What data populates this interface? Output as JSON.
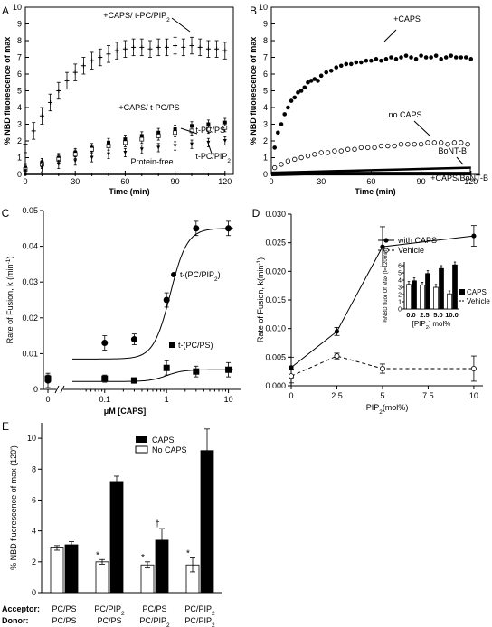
{
  "chart_data": [
    {
      "panel": "A",
      "type": "line",
      "ylabel": "% NBD fluorescence of max",
      "xlabel": "Time (min)",
      "xlim": [
        0,
        125
      ],
      "ylim": [
        0,
        10
      ],
      "xticks": [
        0,
        30,
        60,
        90,
        120
      ],
      "yticks": [
        0,
        1,
        2,
        3,
        4,
        5,
        6,
        7,
        8,
        9,
        10
      ],
      "annotations": [
        "+CAPS/ t-PC/PIP2",
        "+CAPS/ t-PC/PS",
        "t-PC/PS",
        "t-PC/PIP2",
        "Protein-free"
      ],
      "series": [
        {
          "name": "+CAPS/ t-PC/PIP2",
          "x": [
            0,
            5,
            10,
            15,
            20,
            25,
            30,
            35,
            40,
            45,
            50,
            55,
            60,
            65,
            70,
            75,
            80,
            85,
            90,
            95,
            100,
            105,
            110,
            115,
            120
          ],
          "y": [
            1.8,
            2.6,
            3.5,
            4.3,
            5.0,
            5.6,
            6.1,
            6.5,
            6.8,
            7.0,
            7.2,
            7.4,
            7.5,
            7.6,
            7.6,
            7.5,
            7.6,
            7.6,
            7.7,
            7.6,
            7.7,
            7.6,
            7.5,
            7.5,
            7.4
          ]
        },
        {
          "name": "+CAPS/ t-PC/PS",
          "x": [
            0,
            10,
            20,
            30,
            40,
            50,
            60,
            70,
            80,
            90,
            100,
            110,
            120
          ],
          "y": [
            0.4,
            0.7,
            1.0,
            1.3,
            1.6,
            1.9,
            2.1,
            2.3,
            2.5,
            2.7,
            2.9,
            3.0,
            3.1
          ]
        },
        {
          "name": "t-PC/PS",
          "x": [
            0,
            10,
            20,
            30,
            40,
            50,
            60,
            70,
            80,
            90,
            100,
            110,
            120
          ],
          "y": [
            0.3,
            0.6,
            0.9,
            1.2,
            1.5,
            1.7,
            1.9,
            2.1,
            2.3,
            2.5,
            2.6,
            2.7,
            2.8
          ]
        },
        {
          "name": "t-PC/PIP2",
          "x": [
            0,
            10,
            20,
            30,
            40,
            50,
            60,
            70,
            80,
            90,
            100,
            110,
            120
          ],
          "y": [
            0.2,
            0.4,
            0.6,
            0.8,
            1.0,
            1.2,
            1.3,
            1.5,
            1.6,
            1.7,
            1.8,
            1.9,
            2.0
          ]
        },
        {
          "name": "Protein-free",
          "x": [
            0,
            10,
            20,
            30,
            40,
            50,
            60,
            70,
            80,
            90,
            100,
            110,
            120
          ],
          "y": [
            0,
            0,
            0,
            0,
            0,
            0,
            0,
            0,
            0,
            0,
            0,
            0,
            0
          ]
        }
      ]
    },
    {
      "panel": "B",
      "type": "scatter",
      "ylabel": "% NBD fluorescence of max",
      "xlabel": "Time (min)",
      "xlim": [
        0,
        125
      ],
      "ylim": [
        0,
        10
      ],
      "xticks": [
        0,
        30,
        60,
        90,
        120
      ],
      "yticks": [
        0,
        1,
        2,
        3,
        4,
        5,
        6,
        7,
        8,
        9,
        10
      ],
      "annotations": [
        "+CAPS",
        "no CAPS",
        "BoNT-B",
        "+CAPS/BoNT-B"
      ],
      "series": [
        {
          "name": "+CAPS",
          "x": [
            2,
            4,
            6,
            8,
            10,
            12,
            14,
            16,
            18,
            20,
            22,
            24,
            26,
            28,
            30,
            33,
            36,
            39,
            42,
            45,
            48,
            51,
            54,
            57,
            60,
            63,
            66,
            69,
            72,
            75,
            78,
            81,
            84,
            87,
            90,
            93,
            96,
            99,
            102,
            105,
            108,
            111,
            114,
            117,
            120
          ],
          "y": [
            1.6,
            2.5,
            3.0,
            3.6,
            4.0,
            4.4,
            4.6,
            4.9,
            5.0,
            5.2,
            5.5,
            5.6,
            5.7,
            5.6,
            5.9,
            6.1,
            6.2,
            6.4,
            6.5,
            6.6,
            6.6,
            6.7,
            6.7,
            6.8,
            6.8,
            6.9,
            6.8,
            6.9,
            7.0,
            6.9,
            7.0,
            7.1,
            7.0,
            6.9,
            7.1,
            7.0,
            7.0,
            7.1,
            6.9,
            7.0,
            7.1,
            7.0,
            7.0,
            7.0,
            6.9
          ]
        },
        {
          "name": "no CAPS",
          "x": [
            2,
            6,
            10,
            14,
            18,
            22,
            26,
            30,
            34,
            38,
            42,
            46,
            50,
            54,
            58,
            62,
            66,
            70,
            74,
            78,
            82,
            86,
            90,
            94,
            98,
            102,
            106,
            110,
            114,
            118
          ],
          "y": [
            0.4,
            0.6,
            0.8,
            0.9,
            1.0,
            1.1,
            1.2,
            1.3,
            1.3,
            1.4,
            1.4,
            1.5,
            1.5,
            1.6,
            1.6,
            1.6,
            1.7,
            1.7,
            1.7,
            1.8,
            1.8,
            1.8,
            1.8,
            1.9,
            1.9,
            1.9,
            1.8,
            1.9,
            1.9,
            1.8
          ]
        },
        {
          "name": "BoNT-B",
          "x": [
            0,
            20,
            40,
            60,
            80,
            100,
            120
          ],
          "y": [
            0.1,
            0.15,
            0.2,
            0.25,
            0.3,
            0.35,
            0.4
          ]
        },
        {
          "name": "+CAPS/BoNT-B",
          "x": [
            0,
            20,
            40,
            60,
            80,
            100,
            120
          ],
          "y": [
            0.0,
            0.05,
            0.05,
            0.05,
            0.05,
            0.05,
            0.05
          ]
        }
      ]
    },
    {
      "panel": "C",
      "type": "scatter",
      "ylabel": "Rate of Fusion, k (min-1)",
      "xlabel": "μM [CAPS]",
      "ylim": [
        0,
        0.05
      ],
      "yticks": [
        "0",
        "0.01",
        "0.02",
        "0.03",
        "0.04",
        "0.05"
      ],
      "xticks": [
        "0",
        "0.1",
        "1",
        "10"
      ],
      "series": [
        {
          "name": "t-(PC/PIP2)",
          "x": [
            0,
            0.1,
            0.3,
            1,
            3,
            10
          ],
          "y": [
            0.0025,
            0.013,
            0.014,
            0.025,
            0.045,
            0.045
          ],
          "err": [
            0.002,
            0.002,
            0.0015,
            0.002,
            0.002,
            0.002
          ]
        },
        {
          "name": "t-(PC/PS)",
          "x": [
            0,
            0.1,
            0.3,
            1,
            3,
            10
          ],
          "y": [
            0.003,
            0.003,
            0.0025,
            0.006,
            0.005,
            0.0055
          ],
          "err": [
            0.001,
            0.001,
            0.0005,
            0.002,
            0.0015,
            0.002
          ]
        }
      ]
    },
    {
      "panel": "D",
      "type": "line",
      "ylabel": "Rate of Fusion, k(min-1)",
      "xlabel": "PIP2(mol%)",
      "xlim": [
        0,
        10.5
      ],
      "ylim": [
        0,
        0.03
      ],
      "xticks": [
        "0",
        "2.5",
        "5",
        "7.5",
        "10"
      ],
      "yticks": [
        "0.000",
        "0.005",
        "0.010",
        "0.015",
        "0.020",
        "0.025",
        "0.030"
      ],
      "series": [
        {
          "name": "with CAPS",
          "x": [
            0,
            2.5,
            5,
            10
          ],
          "y": [
            0.0032,
            0.0095,
            0.0243,
            0.0262
          ],
          "err": [
            0.0018,
            0.0007,
            0.0035,
            0.0018
          ]
        },
        {
          "name": "Vehicle",
          "x": [
            0,
            2.5,
            5,
            10
          ],
          "y": [
            0.0017,
            0.0052,
            0.003,
            0.003
          ],
          "err": [
            0.0012,
            0.0005,
            0.0008,
            0.0022
          ]
        }
      ],
      "inset": {
        "type": "bar",
        "ylabel": "%NBD fluor Of Max (t=120min)",
        "xlabel": "[PIP2] mol%",
        "ylim": [
          0,
          6.5
        ],
        "yticks": [
          "0",
          "1",
          "2",
          "3",
          "4",
          "5",
          "6"
        ],
        "categories": [
          "0.0",
          "2.5",
          "5.0",
          "10.0"
        ],
        "series": [
          {
            "name": "Vehicle",
            "values": [
              3.4,
              3.3,
              3.0,
              2.1
            ]
          },
          {
            "name": "CAPS",
            "values": [
              3.9,
              4.9,
              5.6,
              6.1
            ]
          }
        ]
      }
    },
    {
      "panel": "E",
      "type": "bar",
      "ylabel": "% NBD fluorescence of max (120')",
      "ylim": [
        0,
        11
      ],
      "yticks": [
        "0",
        "2",
        "4",
        "6",
        "8",
        "10"
      ],
      "categories": [
        {
          "acceptor": "PC/PS",
          "donor": "PC/PS"
        },
        {
          "acceptor": "PC/PIP2",
          "donor": "PC/PS"
        },
        {
          "acceptor": "PC/PS",
          "donor": "PC/PIP2"
        },
        {
          "acceptor": "PC/PIP2",
          "donor": "PC/PIP2"
        }
      ],
      "row_labels": {
        "acceptor": "Acceptor:",
        "donor": "Donor:"
      },
      "series": [
        {
          "name": "No CAPS",
          "values": [
            2.9,
            2.0,
            1.8,
            1.8
          ],
          "err": [
            0.15,
            0.15,
            0.2,
            0.45
          ],
          "marks": [
            "",
            "*",
            "*",
            "*"
          ]
        },
        {
          "name": "CAPS",
          "values": [
            3.1,
            7.2,
            3.4,
            9.2
          ],
          "err": [
            0.2,
            0.35,
            0.75,
            1.4
          ],
          "marks": [
            "",
            "",
            "†",
            ""
          ]
        }
      ]
    }
  ]
}
